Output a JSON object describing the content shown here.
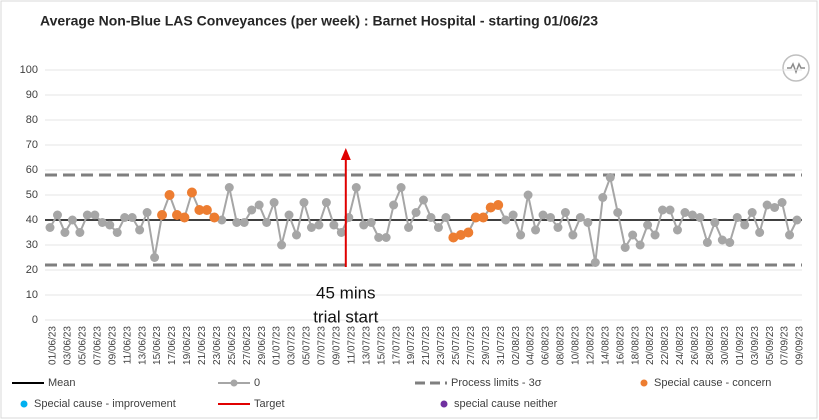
{
  "chart_data": {
    "type": "spc-line",
    "title": "Average Non-Blue LAS Conveyances (per week) : Barnet Hospital - starting 01/06/23",
    "categories": [
      "01/06/23",
      null,
      "03/06/23",
      null,
      "05/06/23",
      null,
      "07/06/23",
      null,
      "09/06/23",
      null,
      "11/06/23",
      null,
      "13/06/23",
      null,
      "15/06/23",
      null,
      "17/06/23",
      null,
      "19/06/23",
      null,
      "21/06/23",
      null,
      "23/06/23",
      null,
      "25/06/23",
      null,
      "27/06/23",
      null,
      "29/06/23",
      null,
      "01/07/23",
      null,
      "03/07/23",
      null,
      "05/07/23",
      null,
      "07/07/23",
      null,
      "09/07/23",
      null,
      "11/07/23",
      null,
      "13/07/23",
      null,
      "15/07/23",
      null,
      "17/07/23",
      null,
      "19/07/23",
      null,
      "21/07/23",
      null,
      "23/07/23",
      null,
      "25/07/23",
      null,
      "27/07/23",
      null,
      "29/07/23",
      null,
      "31/07/23",
      null,
      "02/08/23",
      null,
      "04/08/23",
      null,
      "06/08/23",
      null,
      "08/08/23",
      null,
      "10/08/23",
      null,
      "12/08/23",
      null,
      "14/08/23",
      null,
      "16/08/23",
      null,
      "18/08/23",
      null,
      "20/08/23",
      null,
      "22/08/23",
      null,
      "24/08/23",
      null,
      "26/08/23",
      null,
      "28/08/23",
      null,
      "30/08/23",
      null,
      "01/09/23",
      null,
      "03/09/23",
      null,
      "05/09/23",
      null,
      "07/09/23",
      null,
      "09/09/23"
    ],
    "series": [
      {
        "name": "0",
        "color": "#a6a6a6",
        "values": [
          37,
          42,
          35,
          40,
          35,
          42,
          42,
          39,
          38,
          35,
          41,
          41,
          36,
          43,
          25,
          42,
          50,
          42,
          41,
          51,
          44,
          44,
          41,
          40,
          53,
          39,
          39,
          44,
          46,
          39,
          47,
          30,
          42,
          34,
          47,
          37,
          38,
          47,
          38,
          35,
          41,
          53,
          38,
          39,
          33,
          33,
          46,
          53,
          37,
          43,
          48,
          41,
          37,
          41,
          33,
          34,
          35,
          41,
          41,
          45,
          46,
          40,
          42,
          34,
          50,
          36,
          42,
          41,
          37,
          43,
          34,
          41,
          39,
          23,
          49,
          57,
          43,
          29,
          34,
          30,
          38,
          34,
          44,
          44,
          36,
          43,
          42,
          41,
          31,
          39,
          32,
          31,
          41,
          38,
          43,
          35,
          46,
          45,
          47,
          34,
          40
        ]
      },
      {
        "name": "Special cause - concern",
        "color": "#ed7d31",
        "values": [
          null,
          null,
          null,
          null,
          null,
          null,
          null,
          null,
          null,
          null,
          null,
          null,
          null,
          null,
          null,
          42,
          50,
          42,
          41,
          51,
          44,
          44,
          41,
          null,
          null,
          null,
          null,
          null,
          null,
          null,
          null,
          null,
          null,
          null,
          null,
          null,
          null,
          null,
          null,
          null,
          null,
          null,
          null,
          null,
          null,
          null,
          null,
          null,
          null,
          null,
          null,
          null,
          null,
          null,
          33,
          34,
          35,
          41,
          41,
          45,
          46,
          null,
          null,
          null,
          null,
          null,
          null,
          null,
          null,
          null,
          null,
          null,
          null,
          null,
          null,
          null,
          null,
          null,
          null,
          null,
          null,
          null,
          null,
          null,
          null,
          null,
          null,
          null,
          null,
          null,
          null,
          null,
          null,
          null,
          null,
          null,
          null,
          null,
          null,
          null,
          null
        ]
      }
    ],
    "mean": {
      "name": "Mean",
      "color": "#000000",
      "value": 40
    },
    "process_limits": {
      "name": "Process limits - 3σ",
      "color": "#7f7f7f",
      "values": [
        22,
        58
      ]
    },
    "extra_legend": [
      {
        "name": "Special cause  - improvement",
        "color": "#00b0f0",
        "marker": "dot"
      },
      {
        "name": "Target",
        "color": "#e00000",
        "marker": "line"
      },
      {
        "name": "special cause neither",
        "color": "#7030a0",
        "marker": "dot"
      }
    ],
    "annotation": {
      "lines": [
        "45 mins",
        "trial start"
      ],
      "category": "11/07/23",
      "color": "#e00000"
    },
    "ylim": [
      0,
      100
    ],
    "yticks": [
      0,
      10,
      20,
      30,
      40,
      50,
      60,
      70,
      80,
      90,
      100
    ],
    "grid": true
  }
}
